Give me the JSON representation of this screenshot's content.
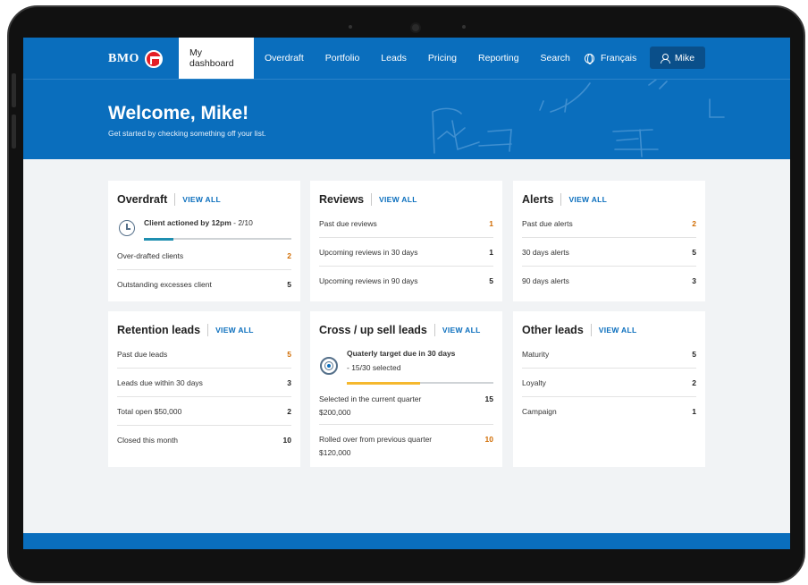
{
  "nav": {
    "logo_text": "BMO",
    "items": [
      {
        "label": "My dashboard",
        "active": true
      },
      {
        "label": "Overdraft"
      },
      {
        "label": "Portfolio"
      },
      {
        "label": "Leads"
      },
      {
        "label": "Pricing"
      },
      {
        "label": "Reporting"
      },
      {
        "label": "Search"
      }
    ],
    "language": "Français",
    "user": "Mike"
  },
  "hero": {
    "title": "Welcome, Mike!",
    "subtitle": "Get started by checking something off your list."
  },
  "view_all": "VIEW ALL",
  "cards": {
    "overdraft": {
      "title": "Overdraft",
      "task_label": "Client actioned by 12pm",
      "task_progress": " - 2/10",
      "progress_fraction": 0.2,
      "rows": [
        {
          "label": "Over-drafted clients",
          "value": "2",
          "warn": true
        },
        {
          "label": "Outstanding excesses client",
          "value": "5"
        }
      ]
    },
    "reviews": {
      "title": "Reviews",
      "rows": [
        {
          "label": "Past due reviews",
          "value": "1",
          "warn": true
        },
        {
          "label": "Upcoming reviews in 30 days",
          "value": "1"
        },
        {
          "label": "Upcoming reviews in 90 days",
          "value": "5"
        }
      ]
    },
    "alerts": {
      "title": "Alerts",
      "rows": [
        {
          "label": "Past due alerts",
          "value": "2",
          "warn": true
        },
        {
          "label": "30 days alerts",
          "value": "5"
        },
        {
          "label": "90 days alerts",
          "value": "3"
        }
      ]
    },
    "retention": {
      "title": "Retention leads",
      "rows": [
        {
          "label": "Past due leads",
          "value": "5",
          "warn": true
        },
        {
          "label": "Leads due within 30 days",
          "value": "3"
        },
        {
          "label": "Total open $50,000",
          "value": "2"
        },
        {
          "label": "Closed this month",
          "value": "10"
        }
      ]
    },
    "cross": {
      "title": "Cross / up sell leads",
      "task_label": "Quaterly target due in 30 days",
      "task_progress": "- 15/30 selected",
      "progress_fraction": 0.5,
      "rows": [
        {
          "label": "Selected in the current quarter",
          "sub": "$200,000",
          "value": "15"
        },
        {
          "label": "Rolled over from previous quarter",
          "sub": "$120,000",
          "value": "10",
          "warn": true
        }
      ]
    },
    "other": {
      "title": "Other leads",
      "rows": [
        {
          "label": "Maturity",
          "value": "5"
        },
        {
          "label": "Loyalty",
          "value": "2"
        },
        {
          "label": "Campaign",
          "value": "1"
        }
      ]
    }
  },
  "colors": {
    "brand_blue": "#0a6ebd",
    "brand_red": "#e41e26",
    "warn": "#d06b00",
    "progress_teal": "#1f8fb0",
    "progress_yellow": "#f5b82e"
  }
}
